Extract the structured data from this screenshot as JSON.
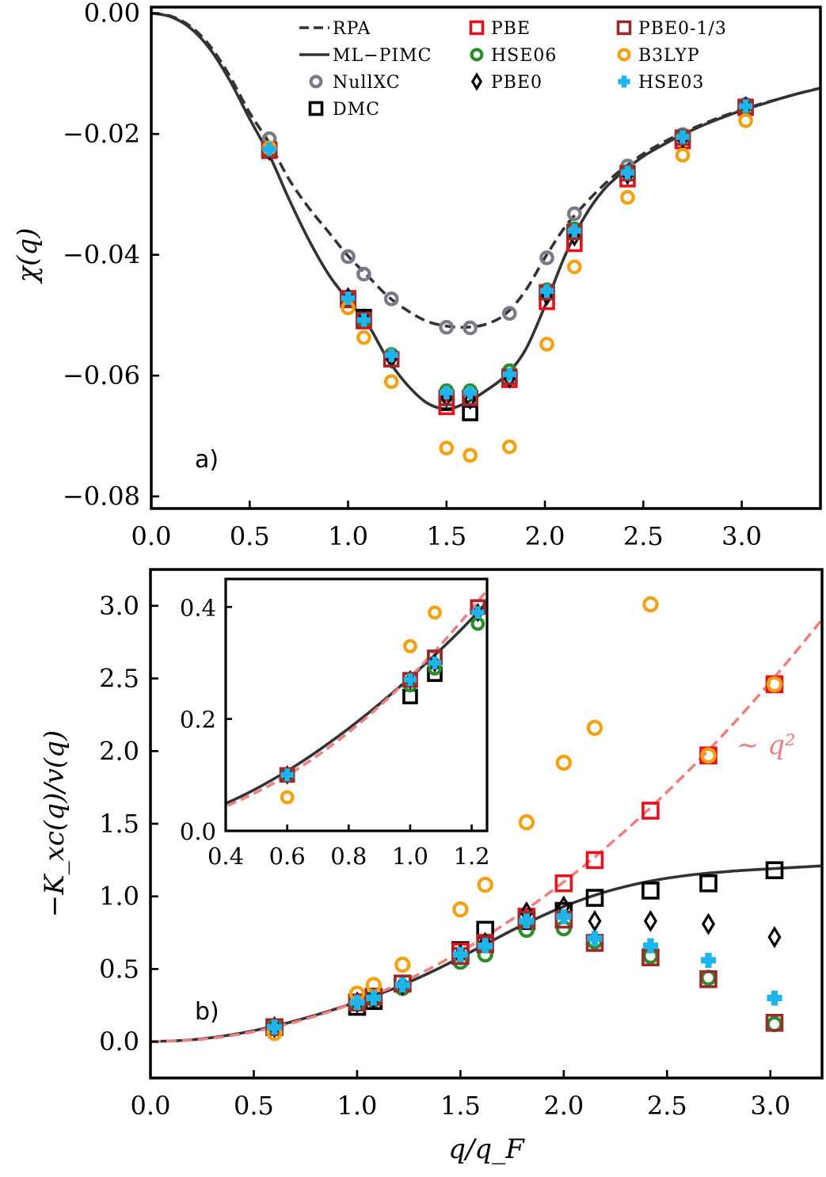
{
  "colors": {
    "RPA": "#333333",
    "ML-PIMC": "#333333",
    "NullXC": "#7a7a8a",
    "DMC": "#000000",
    "PBE": "#e8101a",
    "HSE06": "#2e8b2e",
    "PBE0": "#000000",
    "PBE0-1/3": "#9c2a2a",
    "B3LYP": "#f4a010",
    "HSE03": "#20b4ec",
    "fit": "#f08080"
  },
  "chart_data": [
    {
      "id": "a",
      "type": "line+scatter",
      "panel_label": "a)",
      "ylabel": "χ(q)",
      "xlabel": "",
      "xlim": [
        0.0,
        3.4
      ],
      "ylim": [
        -0.082,
        0.001
      ],
      "xticks": [
        0.0,
        0.5,
        1.0,
        1.5,
        2.0,
        2.5,
        3.0
      ],
      "xtick_labels": [
        "0.0",
        "0.5",
        "1.0",
        "1.5",
        "2.0",
        "2.5",
        "3.0"
      ],
      "yticks": [
        0.0,
        -0.02,
        -0.04,
        -0.06,
        -0.08
      ],
      "ytick_labels": [
        "0.00",
        "−0.02",
        "−0.04",
        "−0.06",
        "−0.08"
      ],
      "legend": {
        "placement": "top",
        "entries": [
          "RPA",
          "ML−PIMC",
          "NullXC",
          "DMC",
          "PBE",
          "HSE06",
          "PBE0",
          "PBE0-1/3",
          "B3LYP",
          "HSE03"
        ]
      },
      "lines": [
        {
          "name": "RPA",
          "style": "dashed",
          "x": [
            0.0,
            0.1,
            0.2,
            0.3,
            0.4,
            0.5,
            0.6,
            0.7,
            0.8,
            0.9,
            1.0,
            1.1,
            1.2,
            1.3,
            1.4,
            1.5,
            1.6,
            1.7,
            1.8,
            1.9,
            2.0,
            2.1,
            2.2,
            2.3,
            2.4,
            2.5,
            2.6,
            2.7,
            2.8,
            2.9,
            3.0,
            3.1,
            3.2,
            3.3,
            3.4
          ],
          "y": [
            0.0,
            -0.0005,
            -0.0022,
            -0.0055,
            -0.0105,
            -0.0165,
            -0.0215,
            -0.0275,
            -0.0322,
            -0.0362,
            -0.0402,
            -0.0435,
            -0.0468,
            -0.0492,
            -0.051,
            -0.0518,
            -0.052,
            -0.0515,
            -0.0498,
            -0.046,
            -0.0405,
            -0.0355,
            -0.0317,
            -0.0284,
            -0.0256,
            -0.0233,
            -0.0214,
            -0.0198,
            -0.0184,
            -0.0171,
            -0.016,
            -0.015,
            -0.0141,
            -0.0132,
            -0.0124
          ]
        },
        {
          "name": "ML-PIMC",
          "style": "solid",
          "x": [
            0.0,
            0.1,
            0.2,
            0.3,
            0.4,
            0.5,
            0.6,
            0.7,
            0.8,
            0.9,
            1.0,
            1.1,
            1.2,
            1.3,
            1.4,
            1.5,
            1.6,
            1.7,
            1.8,
            1.9,
            2.0,
            2.1,
            2.2,
            2.3,
            2.4,
            2.5,
            2.6,
            2.7,
            2.8,
            2.9,
            3.0,
            3.1,
            3.2,
            3.3,
            3.4
          ],
          "y": [
            0.0,
            -0.0006,
            -0.0025,
            -0.006,
            -0.0112,
            -0.0175,
            -0.0235,
            -0.0308,
            -0.0375,
            -0.0432,
            -0.0475,
            -0.0515,
            -0.0572,
            -0.0615,
            -0.0645,
            -0.0655,
            -0.0645,
            -0.0625,
            -0.06,
            -0.0558,
            -0.0485,
            -0.0403,
            -0.0338,
            -0.0292,
            -0.0262,
            -0.0237,
            -0.0218,
            -0.0201,
            -0.0186,
            -0.0173,
            -0.0161,
            -0.0151,
            -0.0141,
            -0.0132,
            -0.0124
          ]
        }
      ],
      "series": [
        {
          "name": "NullXC",
          "marker": "circle",
          "x": [
            0.6,
            1.0,
            1.08,
            1.22,
            1.5,
            1.62,
            1.82,
            2.01,
            2.15,
            2.42,
            2.7,
            3.02
          ],
          "y": [
            -0.0208,
            -0.0403,
            -0.0432,
            -0.0473,
            -0.052,
            -0.0521,
            -0.0497,
            -0.0405,
            -0.0332,
            -0.0253,
            -0.0201,
            -0.0151
          ]
        },
        {
          "name": "DMC",
          "marker": "square",
          "x": [
            1.0,
            1.08,
            1.5,
            1.62
          ],
          "y": [
            -0.0472,
            -0.0503,
            -0.0645,
            -0.0662
          ]
        },
        {
          "name": "PBE",
          "marker": "square",
          "x": [
            0.6,
            1.0,
            1.08,
            1.22,
            1.5,
            1.62,
            1.82,
            2.01,
            2.15,
            2.42,
            2.7,
            3.02
          ],
          "y": [
            -0.0228,
            -0.0472,
            -0.051,
            -0.0573,
            -0.0652,
            -0.0637,
            -0.0607,
            -0.0478,
            -0.0382,
            -0.0275,
            -0.0212,
            -0.0157
          ]
        },
        {
          "name": "HSE06",
          "marker": "circle",
          "x": [
            0.6,
            1.0,
            1.08,
            1.22,
            1.5,
            1.62,
            1.82,
            2.01,
            2.15,
            2.42,
            2.7,
            3.02
          ],
          "y": [
            -0.0225,
            -0.0472,
            -0.051,
            -0.0565,
            -0.0625,
            -0.0625,
            -0.0592,
            -0.0458,
            -0.0357,
            -0.0262,
            -0.0204,
            -0.0153
          ]
        },
        {
          "name": "PBE0",
          "marker": "diamond",
          "x": [
            0.6,
            1.0,
            1.08,
            1.22,
            1.5,
            1.62,
            1.82,
            2.01,
            2.15,
            2.42,
            2.7,
            3.02
          ],
          "y": [
            -0.0228,
            -0.047,
            -0.0505,
            -0.0572,
            -0.0637,
            -0.064,
            -0.0605,
            -0.0468,
            -0.037,
            -0.0268,
            -0.0208,
            -0.0154
          ]
        },
        {
          "name": "PBE0-1/3",
          "marker": "square",
          "x": [
            0.6,
            1.0,
            1.08,
            1.22,
            1.5,
            1.62,
            1.82,
            2.01,
            2.15,
            2.42,
            2.7,
            3.02
          ],
          "y": [
            -0.0226,
            -0.0475,
            -0.0508,
            -0.0573,
            -0.0637,
            -0.0637,
            -0.0602,
            -0.0462,
            -0.0362,
            -0.0265,
            -0.0206,
            -0.0155
          ]
        },
        {
          "name": "B3LYP",
          "marker": "circle",
          "x": [
            0.6,
            1.0,
            1.08,
            1.22,
            1.5,
            1.62,
            1.82,
            2.01,
            2.15,
            2.42,
            2.7,
            3.02
          ],
          "y": [
            -0.0223,
            -0.0488,
            -0.0537,
            -0.061,
            -0.072,
            -0.0732,
            -0.0718,
            -0.0548,
            -0.042,
            -0.0305,
            -0.0235,
            -0.0178
          ]
        },
        {
          "name": "HSE03",
          "marker": "plus",
          "x": [
            0.6,
            1.0,
            1.08,
            1.22,
            1.5,
            1.62,
            1.82,
            2.01,
            2.15,
            2.42,
            2.7,
            3.02
          ],
          "y": [
            -0.0225,
            -0.0472,
            -0.0508,
            -0.0566,
            -0.0628,
            -0.0628,
            -0.0598,
            -0.046,
            -0.036,
            -0.0264,
            -0.0205,
            -0.0154
          ]
        }
      ]
    },
    {
      "id": "b",
      "type": "line+scatter",
      "panel_label": "b)",
      "ylabel": "−K_xc(q)/v(q)",
      "xlabel": "q/q_F",
      "xlim": [
        0.0,
        3.25
      ],
      "ylim": [
        -0.25,
        3.25
      ],
      "xticks": [
        0.0,
        0.5,
        1.0,
        1.5,
        2.0,
        2.5,
        3.0
      ],
      "xtick_labels": [
        "0.0",
        "0.5",
        "1.0",
        "1.5",
        "2.0",
        "2.5",
        "3.0"
      ],
      "yticks": [
        0.0,
        0.5,
        1.0,
        1.5,
        2.0,
        2.5,
        3.0
      ],
      "ytick_labels": [
        "0.0",
        "0.5",
        "1.0",
        "1.5",
        "2.0",
        "2.5",
        "3.0"
      ],
      "annotation": "∼ q²",
      "lines": [
        {
          "name": "ML-PIMC",
          "style": "solid",
          "x": [
            0.0,
            0.2,
            0.4,
            0.6,
            0.8,
            1.0,
            1.2,
            1.4,
            1.6,
            1.8,
            2.0,
            2.2,
            2.4,
            2.6,
            2.8,
            3.0,
            3.25
          ],
          "y": [
            0.0,
            0.013,
            0.049,
            0.107,
            0.183,
            0.274,
            0.379,
            0.508,
            0.655,
            0.802,
            0.93,
            1.03,
            1.1,
            1.145,
            1.172,
            1.19,
            1.21
          ]
        },
        {
          "name": "fit ~ q^2",
          "style": "dashed",
          "x": [
            0.0,
            0.25,
            0.5,
            0.75,
            1.0,
            1.25,
            1.5,
            1.75,
            2.0,
            2.25,
            2.5,
            2.75,
            3.0,
            3.25
          ],
          "y": [
            0.0,
            0.017,
            0.069,
            0.155,
            0.275,
            0.43,
            0.619,
            0.843,
            1.1,
            1.392,
            1.719,
            2.08,
            2.475,
            2.905
          ]
        }
      ],
      "series": [
        {
          "name": "DMC",
          "marker": "square",
          "x": [
            1.0,
            1.08,
            1.5,
            1.62,
            1.82,
            2.0,
            2.15,
            2.42,
            2.7,
            3.02
          ],
          "y": [
            0.24,
            0.28,
            0.63,
            0.77,
            0.83,
            0.9,
            0.99,
            1.04,
            1.09,
            1.18
          ]
        },
        {
          "name": "PBE",
          "marker": "square",
          "x": [
            0.6,
            1.0,
            1.08,
            1.22,
            1.5,
            1.62,
            1.82,
            2.0,
            2.15,
            2.42,
            2.7,
            3.02
          ],
          "y": [
            0.1,
            0.27,
            0.31,
            0.4,
            0.62,
            0.68,
            0.86,
            1.09,
            1.25,
            1.59,
            1.97,
            2.46
          ]
        },
        {
          "name": "HSE06",
          "marker": "circle",
          "x": [
            0.6,
            1.0,
            1.08,
            1.22,
            1.5,
            1.62,
            1.82,
            2.0,
            2.15,
            2.42,
            2.7,
            3.02
          ],
          "y": [
            0.1,
            0.26,
            0.29,
            0.37,
            0.55,
            0.6,
            0.77,
            0.78,
            0.69,
            0.59,
            0.44,
            0.12
          ]
        },
        {
          "name": "PBE0",
          "marker": "diamond",
          "x": [
            0.6,
            1.0,
            1.08,
            1.22,
            1.5,
            1.62,
            1.82,
            2.0,
            2.15,
            2.42,
            2.7,
            3.02
          ],
          "y": [
            0.1,
            0.27,
            0.3,
            0.39,
            0.6,
            0.68,
            0.89,
            0.93,
            0.83,
            0.83,
            0.81,
            0.72
          ]
        },
        {
          "name": "PBE0-1/3",
          "marker": "square",
          "x": [
            0.6,
            1.0,
            1.08,
            1.22,
            1.5,
            1.62,
            1.82,
            2.0,
            2.15,
            2.42,
            2.7,
            3.02
          ],
          "y": [
            0.1,
            0.27,
            0.31,
            0.4,
            0.59,
            0.67,
            0.84,
            0.84,
            0.68,
            0.58,
            0.43,
            0.13
          ]
        },
        {
          "name": "B3LYP",
          "marker": "circle",
          "x": [
            0.6,
            1.0,
            1.08,
            1.22,
            1.5,
            1.62,
            1.82,
            2.0,
            2.15,
            2.42,
            2.7,
            3.02
          ],
          "y": [
            0.06,
            0.33,
            0.39,
            0.53,
            0.91,
            1.08,
            1.51,
            1.92,
            2.16,
            3.01,
            1.97,
            2.46
          ]
        },
        {
          "name": "HSE03",
          "marker": "plus",
          "x": [
            0.6,
            1.0,
            1.08,
            1.22,
            1.5,
            1.62,
            1.82,
            2.0,
            2.15,
            2.42,
            2.7,
            3.02
          ],
          "y": [
            0.1,
            0.27,
            0.3,
            0.39,
            0.6,
            0.66,
            0.83,
            0.86,
            0.71,
            0.66,
            0.56,
            0.3
          ]
        }
      ],
      "inset": {
        "xlim": [
          0.4,
          1.25
        ],
        "ylim": [
          0.0,
          0.45
        ],
        "xticks": [
          0.4,
          0.6,
          0.8,
          1.0,
          1.2
        ],
        "xtick_labels": [
          "0.4",
          "0.6",
          "0.8",
          "1.0",
          "1.2"
        ],
        "yticks": [
          0.0,
          0.2,
          0.4
        ],
        "ytick_labels": [
          "0.0",
          "0.2",
          "0.4"
        ]
      }
    }
  ]
}
